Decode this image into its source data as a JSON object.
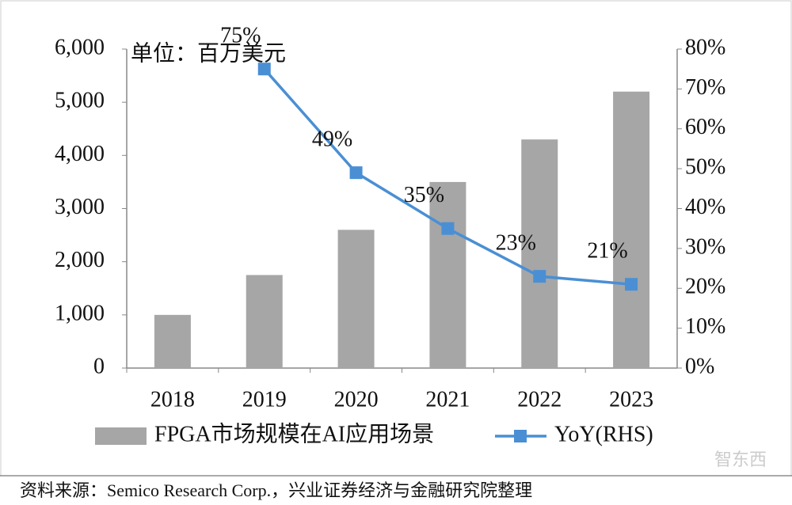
{
  "chart_data": {
    "type": "bar_line",
    "annotation": "单位：百万美元",
    "source": "资料来源：Semico Research Corp.，兴业证券经济与金融研究院整理",
    "watermark": "智东西",
    "categories": [
      "2018",
      "2019",
      "2020",
      "2021",
      "2022",
      "2023"
    ],
    "series": [
      {
        "name": "FPGA市场规模在AI应用场景",
        "type": "bar",
        "color": "#a6a6a6",
        "values": [
          1000,
          1750,
          2600,
          3500,
          4300,
          5200
        ]
      },
      {
        "name": "YoY(RHS)",
        "type": "line",
        "axis": "y2",
        "color": "#4a8fd4",
        "values": [
          null,
          75,
          49,
          35,
          23,
          21
        ],
        "value_labels": [
          null,
          "75%",
          "49%",
          "35%",
          "23%",
          "21%"
        ]
      }
    ],
    "ylim": [
      0,
      6000
    ],
    "yticks": [
      0,
      {
        "value": 1000,
        "label": "1,000"
      },
      {
        "value": 2000,
        "label": "2,000"
      },
      {
        "value": 3000,
        "label": "3,000"
      },
      {
        "value": 4000,
        "label": "4,000"
      },
      {
        "value": 5000,
        "label": "5,000"
      },
      {
        "value": 6000,
        "label": "6,000"
      }
    ],
    "y2lim": [
      0,
      80
    ],
    "y2ticks": [
      {
        "value": 0,
        "label": "0%"
      },
      {
        "value": 10,
        "label": "10%"
      },
      {
        "value": 20,
        "label": "20%"
      },
      {
        "value": 30,
        "label": "30%"
      },
      {
        "value": 40,
        "label": "40%"
      },
      {
        "value": 50,
        "label": "50%"
      },
      {
        "value": 60,
        "label": "60%"
      },
      {
        "value": 70,
        "label": "70%"
      },
      {
        "value": 80,
        "label": "80%"
      }
    ],
    "legend": "bottom"
  }
}
